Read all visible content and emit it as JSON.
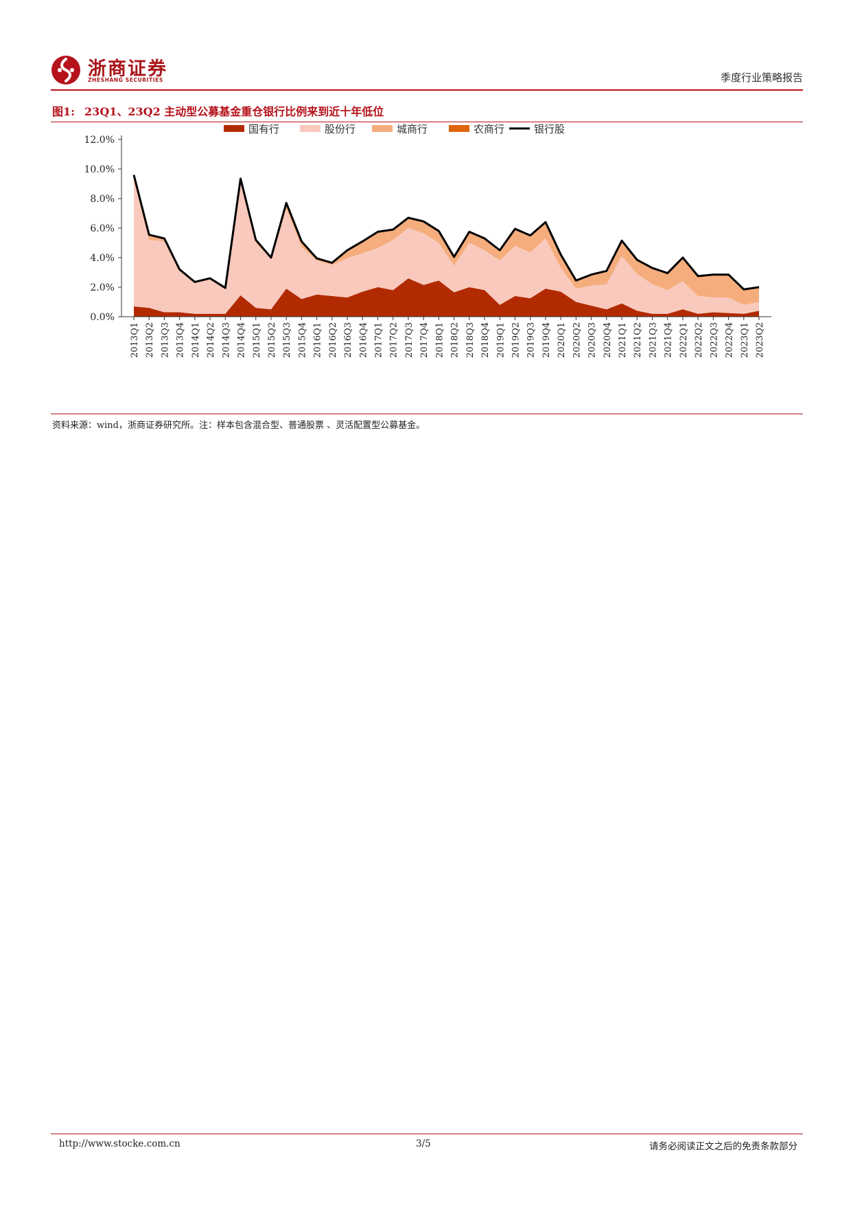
{
  "header": {
    "brand_name": "浙商证券",
    "brand_sub": "ZHESHANG SECURITIES",
    "report_type": "季度行业策略报告"
  },
  "figure": {
    "label": "图1:",
    "title": "23Q1、23Q2 主动型公募基金重仓银行比例来到近十年低位"
  },
  "source_note": "资料来源：wind，浙商证券研究所。注：样本包含混合型、普通股票 、灵活配置型公募基金。",
  "footer": {
    "url": "http://www.stocke.com.cn",
    "page": "3/5",
    "disclaimer": "请务必阅读正文之后的免责条款部分"
  },
  "colors": {
    "state_owned": "#b22a00",
    "joint_stock": "#f9c9bd",
    "city": "#f5ad7d",
    "rural": "#e0640e",
    "bank_total": "#000000",
    "accent_red": "#b5121b"
  },
  "chart_data": {
    "type": "area",
    "title": "",
    "xlabel": "",
    "ylabel": "",
    "ylim": [
      0,
      12
    ],
    "y_ticks": [
      "0.0%",
      "2.0%",
      "4.0%",
      "6.0%",
      "8.0%",
      "10.0%",
      "12.0%"
    ],
    "y_unit": "%",
    "legend_position": "top",
    "stacked": true,
    "categories": [
      "2013Q1",
      "2013Q2",
      "2013Q3",
      "2013Q4",
      "2014Q1",
      "2014Q2",
      "2014Q3",
      "2014Q4",
      "2015Q1",
      "2015Q2",
      "2015Q3",
      "2015Q4",
      "2016Q1",
      "2016Q2",
      "2016Q3",
      "2016Q4",
      "2017Q1",
      "2017Q2",
      "2017Q3",
      "2017Q4",
      "2018Q1",
      "2018Q2",
      "2018Q3",
      "2018Q4",
      "2019Q1",
      "2019Q2",
      "2019Q3",
      "2019Q4",
      "2020Q1",
      "2020Q2",
      "2020Q3",
      "2020Q4",
      "2021Q1",
      "2021Q2",
      "2021Q3",
      "2021Q4",
      "2022Q1",
      "2022Q2",
      "2022Q3",
      "2022Q4",
      "2023Q1",
      "2023Q2"
    ],
    "series": [
      {
        "name": "国有行",
        "kind": "area",
        "color_key": "state_owned",
        "values": [
          0.7,
          0.6,
          0.3,
          0.3,
          0.2,
          0.2,
          0.2,
          1.45,
          0.6,
          0.5,
          1.9,
          1.2,
          1.5,
          1.4,
          1.3,
          1.7,
          2.0,
          1.8,
          2.6,
          2.15,
          2.45,
          1.65,
          2.0,
          1.8,
          0.8,
          1.4,
          1.25,
          1.9,
          1.7,
          1.0,
          0.75,
          0.5,
          0.9,
          0.4,
          0.2,
          0.2,
          0.5,
          0.2,
          0.3,
          0.25,
          0.2,
          0.4
        ]
      },
      {
        "name": "股份行",
        "kind": "area",
        "color_key": "joint_stock",
        "values": [
          8.5,
          4.6,
          4.8,
          2.8,
          2.1,
          2.3,
          1.7,
          7.75,
          4.4,
          3.4,
          5.4,
          3.5,
          2.3,
          2.1,
          2.65,
          2.6,
          2.65,
          3.4,
          3.4,
          3.5,
          2.55,
          1.8,
          3.0,
          2.7,
          3.0,
          3.4,
          3.1,
          3.4,
          1.6,
          0.9,
          1.35,
          1.7,
          3.2,
          2.5,
          2.0,
          1.6,
          1.9,
          1.2,
          1.0,
          1.05,
          0.6,
          0.6
        ]
      },
      {
        "name": "城商行",
        "kind": "area",
        "color_key": "city",
        "values": [
          0.4,
          0.35,
          0.2,
          0.1,
          0.05,
          0.1,
          0.05,
          0.15,
          0.2,
          0.1,
          0.4,
          0.4,
          0.15,
          0.15,
          0.55,
          0.8,
          1.1,
          0.7,
          0.7,
          0.8,
          0.8,
          0.6,
          0.75,
          0.8,
          0.7,
          1.15,
          1.15,
          1.1,
          0.9,
          0.55,
          0.75,
          0.9,
          1.05,
          0.95,
          1.1,
          1.15,
          1.6,
          1.3,
          1.5,
          1.5,
          1.0,
          1.0
        ]
      },
      {
        "name": "农商行",
        "kind": "area",
        "color_key": "rural",
        "values": [
          0,
          0,
          0,
          0,
          0,
          0,
          0,
          0,
          0,
          0,
          0,
          0,
          0,
          0,
          0,
          0,
          0,
          0,
          0,
          0,
          0,
          0,
          0,
          0,
          0,
          0,
          0,
          0,
          0,
          0,
          0,
          0,
          0,
          0,
          0,
          0,
          0,
          0.05,
          0.05,
          0.05,
          0.05,
          0.05
        ]
      },
      {
        "name": "银行股",
        "kind": "line",
        "color_key": "bank_total",
        "values": [
          9.6,
          5.55,
          5.3,
          3.2,
          2.35,
          2.6,
          1.95,
          9.35,
          5.2,
          4.0,
          7.7,
          5.1,
          3.95,
          3.65,
          4.5,
          5.1,
          5.75,
          5.9,
          6.7,
          6.45,
          5.8,
          4.05,
          5.75,
          5.3,
          4.5,
          5.95,
          5.5,
          6.4,
          4.2,
          2.45,
          2.85,
          3.1,
          5.15,
          3.85,
          3.3,
          2.95,
          4.0,
          2.75,
          2.85,
          2.85,
          1.85,
          2.0
        ]
      }
    ]
  }
}
